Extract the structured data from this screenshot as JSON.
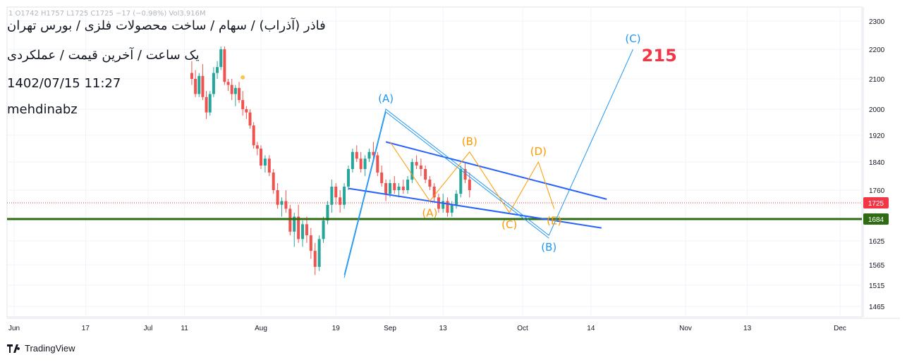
{
  "header": {
    "title": "فاذر (آذراب) / سهام / ساخت محصولات فلزی / بورس تهران",
    "subtitle": "یک ساعت / آخرین قیمت / عملکردی",
    "datetime": "1402/07/15 11:27",
    "author": "mehdinabz",
    "ohlc_strip": "1  O1742  H1757  L1725  C1725  −17 (−0.98%)  Vol3.916M"
  },
  "branding": {
    "logo_text": "TradingView"
  },
  "chart_data": {
    "type": "candlestick",
    "y_ticks": [
      1465,
      1515,
      1565,
      1625,
      1684,
      1760,
      1840,
      1920,
      2000,
      2100,
      2200,
      2300
    ],
    "x_ticks": [
      "Jun",
      "17",
      "Jul",
      "11",
      "Aug",
      "19",
      "Sep",
      "13",
      "Oct",
      "14",
      "Nov",
      "13",
      "Dec"
    ],
    "current_price": 1725,
    "support_level": 1684,
    "price_label": "1725",
    "support_label": "1684",
    "target_label": "215",
    "colors": {
      "up": "#26a69a",
      "down": "#ef5350",
      "support": "#2e6b12",
      "wave_blue": "#2196f3",
      "wave_orange": "#ff9800",
      "channel": "#2962ff",
      "target": "#f23645",
      "price_tag": "#f23645"
    },
    "candles": [
      {
        "d": "2023-07-13",
        "o": 2120,
        "h": 2160,
        "l": 2080,
        "c": 2100
      },
      {
        "d": "2023-07-14",
        "o": 2100,
        "h": 2130,
        "l": 2040,
        "c": 2050
      },
      {
        "d": "2023-07-15",
        "o": 2050,
        "h": 2120,
        "l": 2040,
        "c": 2110
      },
      {
        "d": "2023-07-16",
        "o": 2110,
        "h": 2150,
        "l": 2030,
        "c": 2040
      },
      {
        "d": "2023-07-17",
        "o": 2040,
        "h": 2060,
        "l": 1970,
        "c": 1990
      },
      {
        "d": "2023-07-18",
        "o": 1990,
        "h": 2060,
        "l": 1980,
        "c": 2050
      },
      {
        "d": "2023-07-19",
        "o": 2050,
        "h": 2140,
        "l": 2040,
        "c": 2120
      },
      {
        "d": "2023-07-20",
        "o": 2120,
        "h": 2160,
        "l": 2100,
        "c": 2140
      },
      {
        "d": "2023-07-21",
        "o": 2140,
        "h": 2210,
        "l": 2130,
        "c": 2200
      },
      {
        "d": "2023-07-22",
        "o": 2200,
        "h": 2210,
        "l": 2080,
        "c": 2090
      },
      {
        "d": "2023-07-23",
        "o": 2090,
        "h": 2100,
        "l": 2060,
        "c": 2080
      },
      {
        "d": "2023-07-24",
        "o": 2080,
        "h": 2100,
        "l": 2030,
        "c": 2050
      },
      {
        "d": "2023-07-25",
        "o": 2050,
        "h": 2080,
        "l": 2010,
        "c": 2070
      },
      {
        "d": "2023-07-26",
        "o": 2070,
        "h": 2090,
        "l": 2020,
        "c": 2030
      },
      {
        "d": "2023-07-27",
        "o": 2030,
        "h": 2060,
        "l": 1980,
        "c": 2000
      },
      {
        "d": "2023-07-28",
        "o": 2000,
        "h": 2010,
        "l": 1970,
        "c": 1990
      },
      {
        "d": "2023-07-29",
        "o": 1990,
        "h": 2000,
        "l": 1940,
        "c": 1950
      },
      {
        "d": "2023-07-30",
        "o": 1950,
        "h": 1960,
        "l": 1880,
        "c": 1890
      },
      {
        "d": "2023-07-31",
        "o": 1890,
        "h": 1900,
        "l": 1860,
        "c": 1880
      },
      {
        "d": "2023-08-01",
        "o": 1880,
        "h": 1890,
        "l": 1820,
        "c": 1830
      },
      {
        "d": "2023-08-02",
        "o": 1830,
        "h": 1860,
        "l": 1810,
        "c": 1850
      },
      {
        "d": "2023-08-03",
        "o": 1850,
        "h": 1860,
        "l": 1800,
        "c": 1810
      },
      {
        "d": "2023-08-04",
        "o": 1810,
        "h": 1820,
        "l": 1750,
        "c": 1760
      },
      {
        "d": "2023-08-05",
        "o": 1760,
        "h": 1780,
        "l": 1710,
        "c": 1720
      },
      {
        "d": "2023-08-06",
        "o": 1720,
        "h": 1740,
        "l": 1690,
        "c": 1730
      },
      {
        "d": "2023-08-07",
        "o": 1730,
        "h": 1760,
        "l": 1700,
        "c": 1710
      },
      {
        "d": "2023-08-08",
        "o": 1710,
        "h": 1720,
        "l": 1640,
        "c": 1650
      },
      {
        "d": "2023-08-09",
        "o": 1650,
        "h": 1700,
        "l": 1610,
        "c": 1690
      },
      {
        "d": "2023-08-10",
        "o": 1690,
        "h": 1720,
        "l": 1620,
        "c": 1630
      },
      {
        "d": "2023-08-11",
        "o": 1630,
        "h": 1680,
        "l": 1610,
        "c": 1670
      },
      {
        "d": "2023-08-12",
        "o": 1670,
        "h": 1690,
        "l": 1620,
        "c": 1640
      },
      {
        "d": "2023-08-13",
        "o": 1640,
        "h": 1660,
        "l": 1580,
        "c": 1600
      },
      {
        "d": "2023-08-14",
        "o": 1600,
        "h": 1620,
        "l": 1540,
        "c": 1560
      },
      {
        "d": "2023-08-15",
        "o": 1560,
        "h": 1640,
        "l": 1550,
        "c": 1630
      },
      {
        "d": "2023-08-16",
        "o": 1630,
        "h": 1690,
        "l": 1620,
        "c": 1680
      },
      {
        "d": "2023-08-17",
        "o": 1680,
        "h": 1730,
        "l": 1670,
        "c": 1720
      },
      {
        "d": "2023-08-18",
        "o": 1720,
        "h": 1790,
        "l": 1700,
        "c": 1770
      },
      {
        "d": "2023-08-19",
        "o": 1770,
        "h": 1780,
        "l": 1720,
        "c": 1740
      },
      {
        "d": "2023-08-20",
        "o": 1740,
        "h": 1760,
        "l": 1700,
        "c": 1720
      },
      {
        "d": "2023-08-21",
        "o": 1720,
        "h": 1780,
        "l": 1710,
        "c": 1770
      },
      {
        "d": "2023-08-22",
        "o": 1770,
        "h": 1830,
        "l": 1760,
        "c": 1820
      },
      {
        "d": "2023-08-23",
        "o": 1820,
        "h": 1880,
        "l": 1810,
        "c": 1870
      },
      {
        "d": "2023-08-24",
        "o": 1870,
        "h": 1890,
        "l": 1840,
        "c": 1850
      },
      {
        "d": "2023-08-25",
        "o": 1850,
        "h": 1870,
        "l": 1810,
        "c": 1820
      },
      {
        "d": "2023-08-26",
        "o": 1820,
        "h": 1860,
        "l": 1800,
        "c": 1850
      },
      {
        "d": "2023-08-27",
        "o": 1850,
        "h": 1880,
        "l": 1840,
        "c": 1870
      },
      {
        "d": "2023-08-28",
        "o": 1870,
        "h": 1900,
        "l": 1850,
        "c": 1860
      },
      {
        "d": "2023-08-29",
        "o": 1860,
        "h": 1870,
        "l": 1800,
        "c": 1810
      },
      {
        "d": "2023-08-30",
        "o": 1810,
        "h": 1830,
        "l": 1770,
        "c": 1780
      },
      {
        "d": "2023-08-31",
        "o": 1780,
        "h": 1790,
        "l": 1730,
        "c": 1750
      },
      {
        "d": "2023-09-01",
        "o": 1750,
        "h": 1790,
        "l": 1740,
        "c": 1780
      },
      {
        "d": "2023-09-02",
        "o": 1780,
        "h": 1800,
        "l": 1750,
        "c": 1760
      },
      {
        "d": "2023-09-03",
        "o": 1760,
        "h": 1780,
        "l": 1740,
        "c": 1770
      },
      {
        "d": "2023-09-04",
        "o": 1770,
        "h": 1790,
        "l": 1750,
        "c": 1760
      },
      {
        "d": "2023-09-05",
        "o": 1760,
        "h": 1800,
        "l": 1750,
        "c": 1790
      },
      {
        "d": "2023-09-06",
        "o": 1790,
        "h": 1850,
        "l": 1780,
        "c": 1840
      },
      {
        "d": "2023-09-07",
        "o": 1840,
        "h": 1860,
        "l": 1820,
        "c": 1830
      },
      {
        "d": "2023-09-08",
        "o": 1830,
        "h": 1850,
        "l": 1800,
        "c": 1820
      },
      {
        "d": "2023-09-09",
        "o": 1820,
        "h": 1830,
        "l": 1780,
        "c": 1790
      },
      {
        "d": "2023-09-10",
        "o": 1790,
        "h": 1800,
        "l": 1760,
        "c": 1770
      },
      {
        "d": "2023-09-11",
        "o": 1770,
        "h": 1780,
        "l": 1730,
        "c": 1740
      },
      {
        "d": "2023-09-12",
        "o": 1740,
        "h": 1750,
        "l": 1700,
        "c": 1710
      },
      {
        "d": "2023-09-13",
        "o": 1710,
        "h": 1750,
        "l": 1700,
        "c": 1730
      },
      {
        "d": "2023-09-14",
        "o": 1730,
        "h": 1740,
        "l": 1690,
        "c": 1700
      },
      {
        "d": "2023-09-15",
        "o": 1700,
        "h": 1730,
        "l": 1690,
        "c": 1720
      },
      {
        "d": "2023-09-16",
        "o": 1720,
        "h": 1760,
        "l": 1710,
        "c": 1750
      },
      {
        "d": "2023-09-17",
        "o": 1750,
        "h": 1830,
        "l": 1740,
        "c": 1820
      },
      {
        "d": "2023-09-18",
        "o": 1820,
        "h": 1840,
        "l": 1780,
        "c": 1790
      },
      {
        "d": "2023-09-19",
        "o": 1790,
        "h": 1810,
        "l": 1740,
        "c": 1760
      }
    ],
    "waves": [
      {
        "label": "(A)",
        "color": "blue",
        "d": "2023-08-31",
        "y": 2000,
        "pos": "above"
      },
      {
        "label": "(B)",
        "color": "blue",
        "d": "2023-10-06",
        "y": 1640,
        "pos": "below"
      },
      {
        "label": "(C)",
        "color": "blue",
        "d": "2023-10-22",
        "y": 2200,
        "pos": "above"
      },
      {
        "label": "(A)",
        "color": "orange",
        "d": "2023-09-10",
        "y": 1730,
        "pos": "below"
      },
      {
        "label": "(B)",
        "color": "orange",
        "d": "2023-09-19",
        "y": 1870,
        "pos": "above"
      },
      {
        "label": "(C)",
        "color": "orange",
        "d": "2023-09-28",
        "y": 1700,
        "pos": "below"
      },
      {
        "label": "(D)",
        "color": "orange",
        "d": "2023-10-04",
        "y": 1840,
        "pos": "above"
      },
      {
        "label": "(E)",
        "color": "orange",
        "d": "2023-10-07",
        "y": 1710,
        "pos": "below"
      }
    ]
  }
}
